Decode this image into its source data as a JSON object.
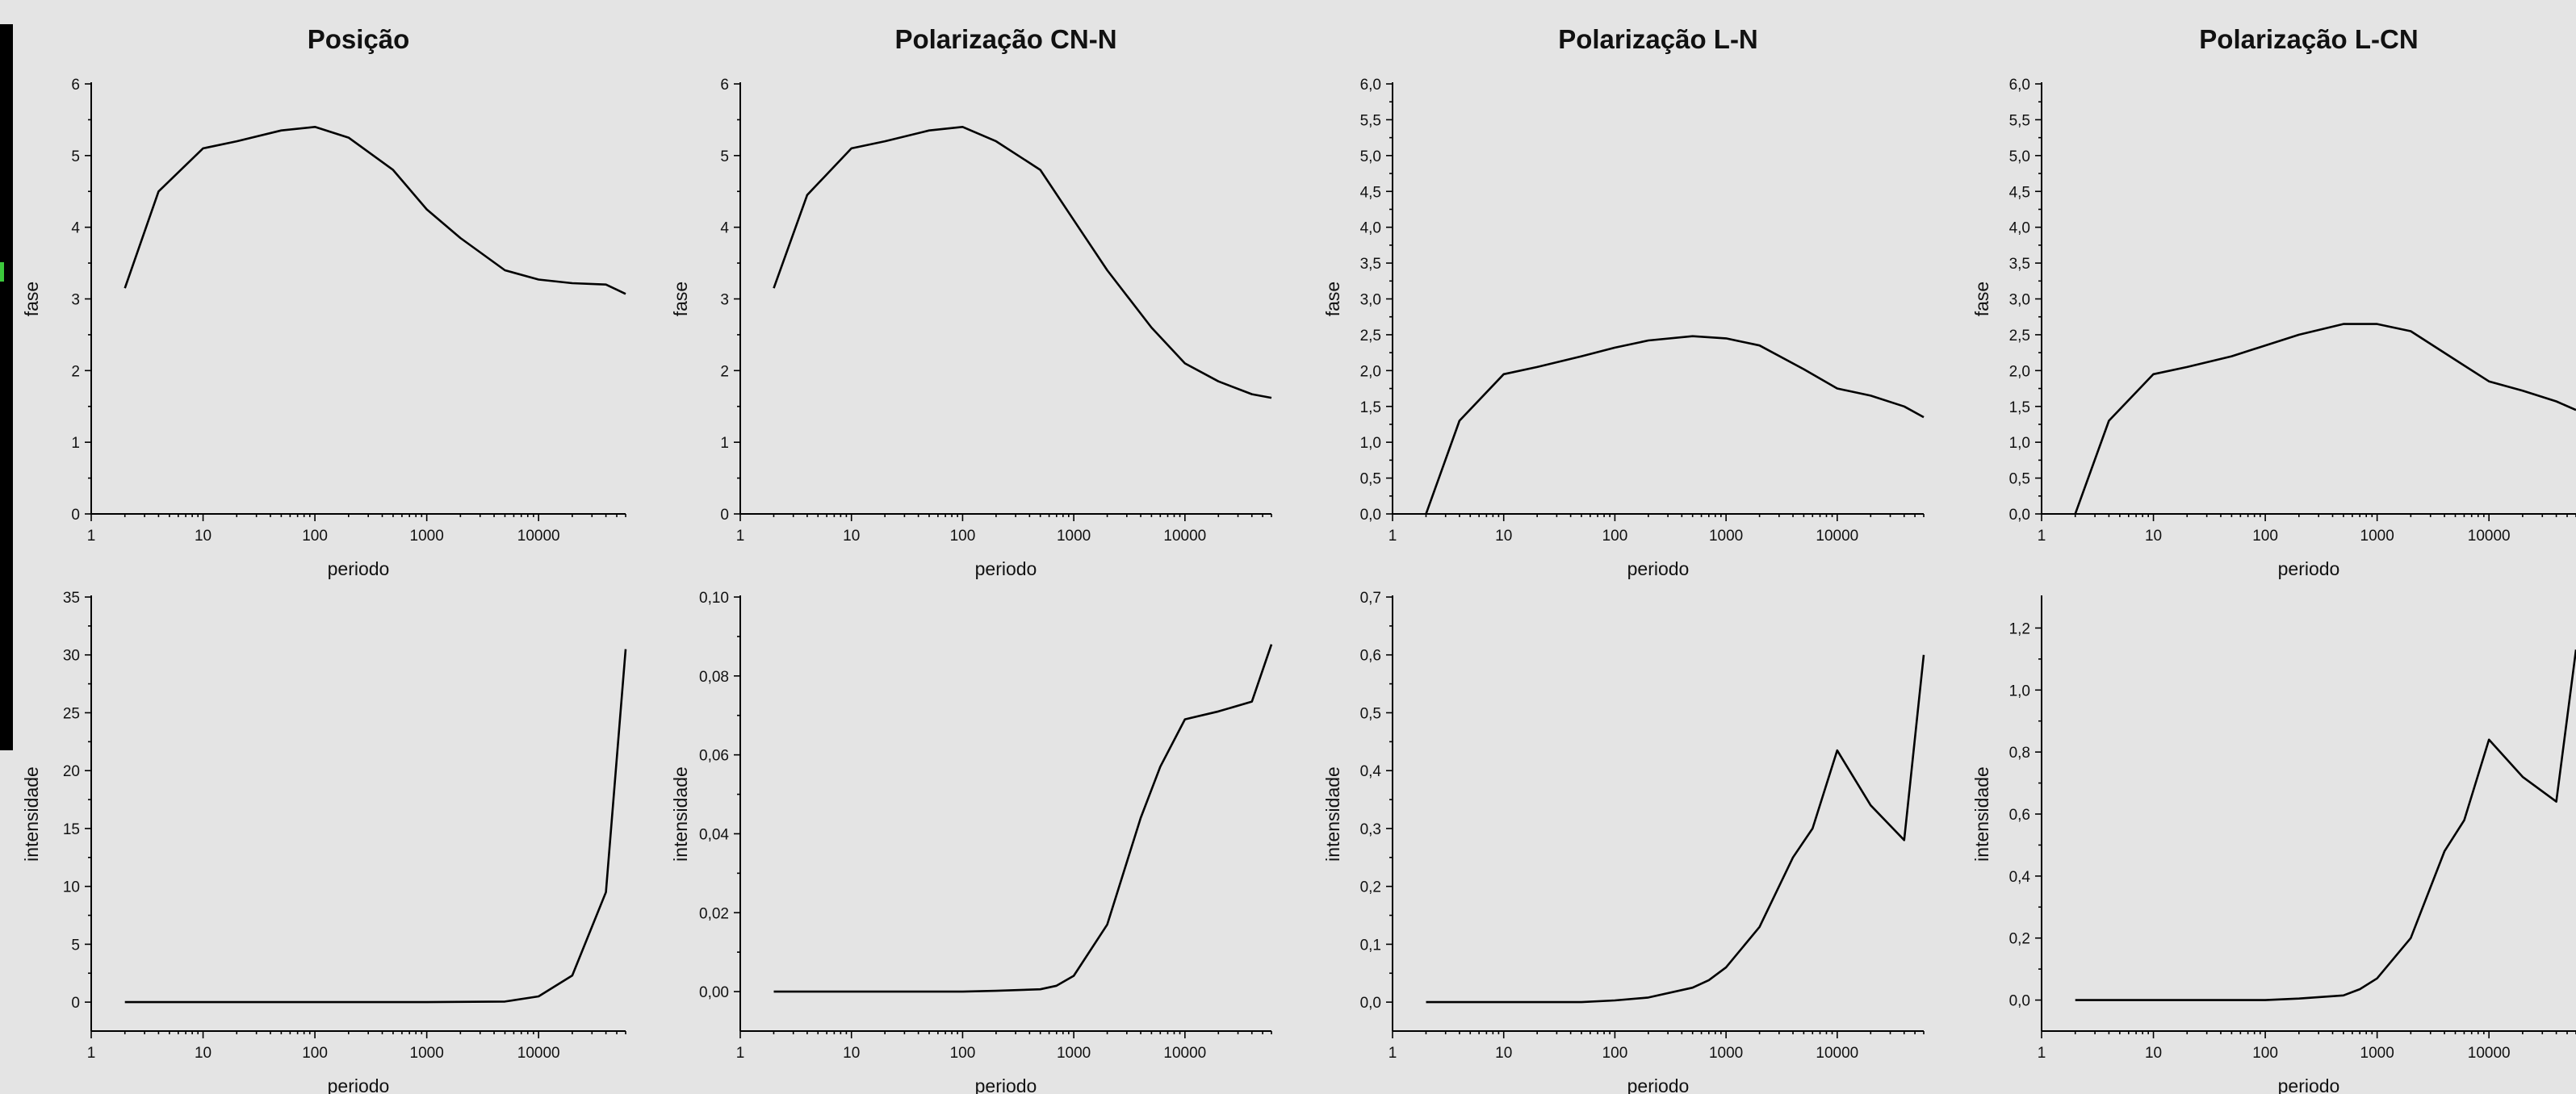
{
  "chart_data": [
    {
      "type": "line",
      "title": "Posição",
      "xlabel": "periodo",
      "ylabel": "fase",
      "x_scale": "log",
      "xlim": [
        1,
        60000
      ],
      "x_ticks": [
        1,
        10,
        100,
        1000,
        10000
      ],
      "x_tick_labels": [
        "1",
        "10",
        "100",
        "1000",
        "10000"
      ],
      "ylim": [
        0,
        6
      ],
      "y_ticks": [
        0,
        1,
        2,
        3,
        4,
        5,
        6
      ],
      "y_tick_labels": [
        "0",
        "1",
        "2",
        "3",
        "4",
        "5",
        "6"
      ],
      "series": [
        {
          "x": [
            2,
            4,
            10,
            20,
            50,
            100,
            200,
            500,
            1000,
            2000,
            5000,
            10000,
            20000,
            40000,
            60000
          ],
          "values": [
            3.15,
            4.5,
            5.1,
            5.2,
            5.35,
            5.4,
            5.25,
            4.8,
            4.25,
            3.85,
            3.4,
            3.27,
            3.22,
            3.2,
            3.07
          ]
        }
      ]
    },
    {
      "type": "line",
      "title": "Polarização CN-N",
      "xlabel": "periodo",
      "ylabel": "fase",
      "x_scale": "log",
      "xlim": [
        1,
        60000
      ],
      "x_ticks": [
        1,
        10,
        100,
        1000,
        10000
      ],
      "x_tick_labels": [
        "1",
        "10",
        "100",
        "1000",
        "10000"
      ],
      "ylim": [
        0,
        6
      ],
      "y_ticks": [
        0,
        1,
        2,
        3,
        4,
        5,
        6
      ],
      "y_tick_labels": [
        "0",
        "1",
        "2",
        "3",
        "4",
        "5",
        "6"
      ],
      "series": [
        {
          "x": [
            2,
            4,
            10,
            20,
            50,
            100,
            200,
            500,
            1000,
            2000,
            5000,
            10000,
            20000,
            40000,
            60000
          ],
          "values": [
            3.15,
            4.45,
            5.1,
            5.2,
            5.35,
            5.4,
            5.2,
            4.8,
            4.1,
            3.4,
            2.6,
            2.1,
            1.85,
            1.67,
            1.62
          ]
        }
      ]
    },
    {
      "type": "line",
      "title": "Polarização L-N",
      "xlabel": "periodo",
      "ylabel": "fase",
      "x_scale": "log",
      "xlim": [
        1,
        60000
      ],
      "x_ticks": [
        1,
        10,
        100,
        1000,
        10000
      ],
      "x_tick_labels": [
        "1",
        "10",
        "100",
        "1000",
        "10000"
      ],
      "ylim": [
        0,
        6
      ],
      "y_ticks": [
        0,
        0.5,
        1,
        1.5,
        2,
        2.5,
        3,
        3.5,
        4,
        4.5,
        5,
        5.5,
        6
      ],
      "y_tick_labels": [
        "0,0",
        "0,5",
        "1,0",
        "1,5",
        "2,0",
        "2,5",
        "3,0",
        "3,5",
        "4,0",
        "4,5",
        "5,0",
        "5,5",
        "6,0"
      ],
      "series": [
        {
          "x": [
            2,
            4,
            10,
            20,
            50,
            100,
            200,
            500,
            1000,
            2000,
            5000,
            10000,
            20000,
            40000,
            60000
          ],
          "values": [
            0.0,
            1.3,
            1.95,
            2.05,
            2.2,
            2.32,
            2.42,
            2.48,
            2.45,
            2.35,
            2.02,
            1.75,
            1.65,
            1.5,
            1.35
          ]
        }
      ]
    },
    {
      "type": "line",
      "title": "Polarização L-CN",
      "xlabel": "periodo",
      "ylabel": "fase",
      "x_scale": "log",
      "xlim": [
        1,
        60000
      ],
      "x_ticks": [
        1,
        10,
        100,
        1000,
        10000
      ],
      "x_tick_labels": [
        "1",
        "10",
        "100",
        "1000",
        "10000"
      ],
      "ylim": [
        0,
        6
      ],
      "y_ticks": [
        0,
        0.5,
        1,
        1.5,
        2,
        2.5,
        3,
        3.5,
        4,
        4.5,
        5,
        5.5,
        6
      ],
      "y_tick_labels": [
        "0,0",
        "0,5",
        "1,0",
        "1,5",
        "2,0",
        "2,5",
        "3,0",
        "3,5",
        "4,0",
        "4,5",
        "5,0",
        "5,5",
        "6,0"
      ],
      "series": [
        {
          "x": [
            2,
            4,
            10,
            20,
            50,
            100,
            200,
            500,
            1000,
            2000,
            5000,
            10000,
            20000,
            40000,
            60000
          ],
          "values": [
            0.0,
            1.3,
            1.95,
            2.05,
            2.2,
            2.35,
            2.5,
            2.65,
            2.65,
            2.55,
            2.15,
            1.85,
            1.72,
            1.57,
            1.45
          ]
        }
      ]
    },
    {
      "type": "line",
      "title": "",
      "xlabel": "periodo",
      "ylabel": "intensidade",
      "x_scale": "log",
      "xlim": [
        1,
        60000
      ],
      "x_ticks": [
        1,
        10,
        100,
        1000,
        10000
      ],
      "x_tick_labels": [
        "1",
        "10",
        "100",
        "1000",
        "10000"
      ],
      "ylim": [
        -2.5,
        35
      ],
      "y_ticks": [
        0,
        5,
        10,
        15,
        20,
        25,
        30,
        35
      ],
      "y_tick_labels": [
        "0",
        "5",
        "10",
        "15",
        "20",
        "25",
        "30",
        "35"
      ],
      "series": [
        {
          "x": [
            2,
            10,
            100,
            1000,
            5000,
            10000,
            20000,
            40000,
            60000
          ],
          "values": [
            0.0,
            0.0,
            0.0,
            0.0,
            0.05,
            0.5,
            2.3,
            9.5,
            30.5
          ]
        }
      ]
    },
    {
      "type": "line",
      "title": "",
      "xlabel": "periodo",
      "ylabel": "intensidade",
      "x_scale": "log",
      "xlim": [
        1,
        60000
      ],
      "x_ticks": [
        1,
        10,
        100,
        1000,
        10000
      ],
      "x_tick_labels": [
        "1",
        "10",
        "100",
        "1000",
        "10000"
      ],
      "ylim": [
        -0.01,
        0.1
      ],
      "y_ticks": [
        0,
        0.02,
        0.04,
        0.06,
        0.08,
        0.1
      ],
      "y_tick_labels": [
        "0,00",
        "0,02",
        "0,04",
        "0,06",
        "0,08",
        "0,10"
      ],
      "series": [
        {
          "x": [
            2,
            10,
            100,
            200,
            500,
            700,
            1000,
            2000,
            4000,
            6000,
            10000,
            20000,
            40000,
            60000
          ],
          "values": [
            0.0,
            0.0,
            0.0,
            0.0002,
            0.0006,
            0.0015,
            0.004,
            0.017,
            0.044,
            0.057,
            0.069,
            0.071,
            0.0735,
            0.088
          ]
        }
      ]
    },
    {
      "type": "line",
      "title": "",
      "xlabel": "periodo",
      "ylabel": "intensidade",
      "x_scale": "log",
      "xlim": [
        1,
        60000
      ],
      "x_ticks": [
        1,
        10,
        100,
        1000,
        10000
      ],
      "x_tick_labels": [
        "1",
        "10",
        "100",
        "1000",
        "10000"
      ],
      "ylim": [
        -0.05,
        0.7
      ],
      "y_ticks": [
        0,
        0.1,
        0.2,
        0.3,
        0.4,
        0.5,
        0.6,
        0.7
      ],
      "y_tick_labels": [
        "0,0",
        "0,1",
        "0,2",
        "0,3",
        "0,4",
        "0,5",
        "0,6",
        "0,7"
      ],
      "series": [
        {
          "x": [
            2,
            10,
            50,
            100,
            200,
            500,
            700,
            1000,
            2000,
            4000,
            6000,
            10000,
            20000,
            40000,
            60000
          ],
          "values": [
            0.0,
            0.0,
            0.0,
            0.003,
            0.008,
            0.025,
            0.038,
            0.06,
            0.13,
            0.25,
            0.3,
            0.435,
            0.34,
            0.28,
            0.6
          ]
        }
      ]
    },
    {
      "type": "line",
      "title": "",
      "xlabel": "periodo",
      "ylabel": "intensidade",
      "x_scale": "log",
      "xlim": [
        1,
        60000
      ],
      "x_ticks": [
        1,
        10,
        100,
        1000,
        10000
      ],
      "x_tick_labels": [
        "1",
        "10",
        "100",
        "1000",
        "10000"
      ],
      "ylim": [
        -0.1,
        1.3
      ],
      "y_ticks": [
        0,
        0.2,
        0.4,
        0.6,
        0.8,
        1.0,
        1.2
      ],
      "y_tick_labels": [
        "0,0",
        "0,2",
        "0,4",
        "0,6",
        "0,8",
        "1,0",
        "1,2"
      ],
      "series": [
        {
          "x": [
            2,
            10,
            100,
            200,
            500,
            700,
            1000,
            2000,
            4000,
            6000,
            10000,
            20000,
            40000,
            60000
          ],
          "values": [
            0.0,
            0.0,
            0.0,
            0.005,
            0.015,
            0.035,
            0.07,
            0.2,
            0.48,
            0.58,
            0.84,
            0.72,
            0.64,
            1.13
          ]
        }
      ]
    }
  ]
}
